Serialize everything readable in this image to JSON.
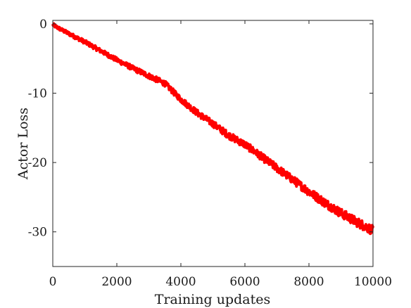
{
  "chart_data": {
    "type": "line",
    "title": "",
    "xlabel": "Training updates",
    "ylabel": "Actor Loss",
    "xlim": [
      0,
      10000
    ],
    "ylim": [
      -35,
      0.5
    ],
    "x_ticks": [
      0,
      2000,
      4000,
      6000,
      8000,
      10000
    ],
    "x_tick_labels": [
      "0",
      "2000",
      "4000",
      "6000",
      "8000",
      "10000"
    ],
    "y_ticks": [
      0,
      -10,
      -20,
      -30
    ],
    "y_tick_labels": [
      "0",
      "-10",
      "-20",
      "-30"
    ],
    "grid": false,
    "legend": "none",
    "series": [
      {
        "color": "#ff0000",
        "x": [
          0,
          100,
          250,
          500,
          1000,
          1500,
          2000,
          2500,
          3000,
          3500,
          4000,
          4500,
          5000,
          5500,
          6000,
          6500,
          7000,
          7500,
          8000,
          8500,
          9000,
          9500,
          10000
        ],
        "y": [
          -0.1,
          -0.4,
          -0.8,
          -1.4,
          -2.6,
          -3.9,
          -5.2,
          -6.4,
          -7.5,
          -8.6,
          -10.9,
          -12.8,
          -14.4,
          -16.1,
          -17.4,
          -19.1,
          -20.8,
          -22.5,
          -24.2,
          -25.8,
          -27.3,
          -28.6,
          -29.8
        ],
        "noise_band": 0.7
      }
    ]
  }
}
